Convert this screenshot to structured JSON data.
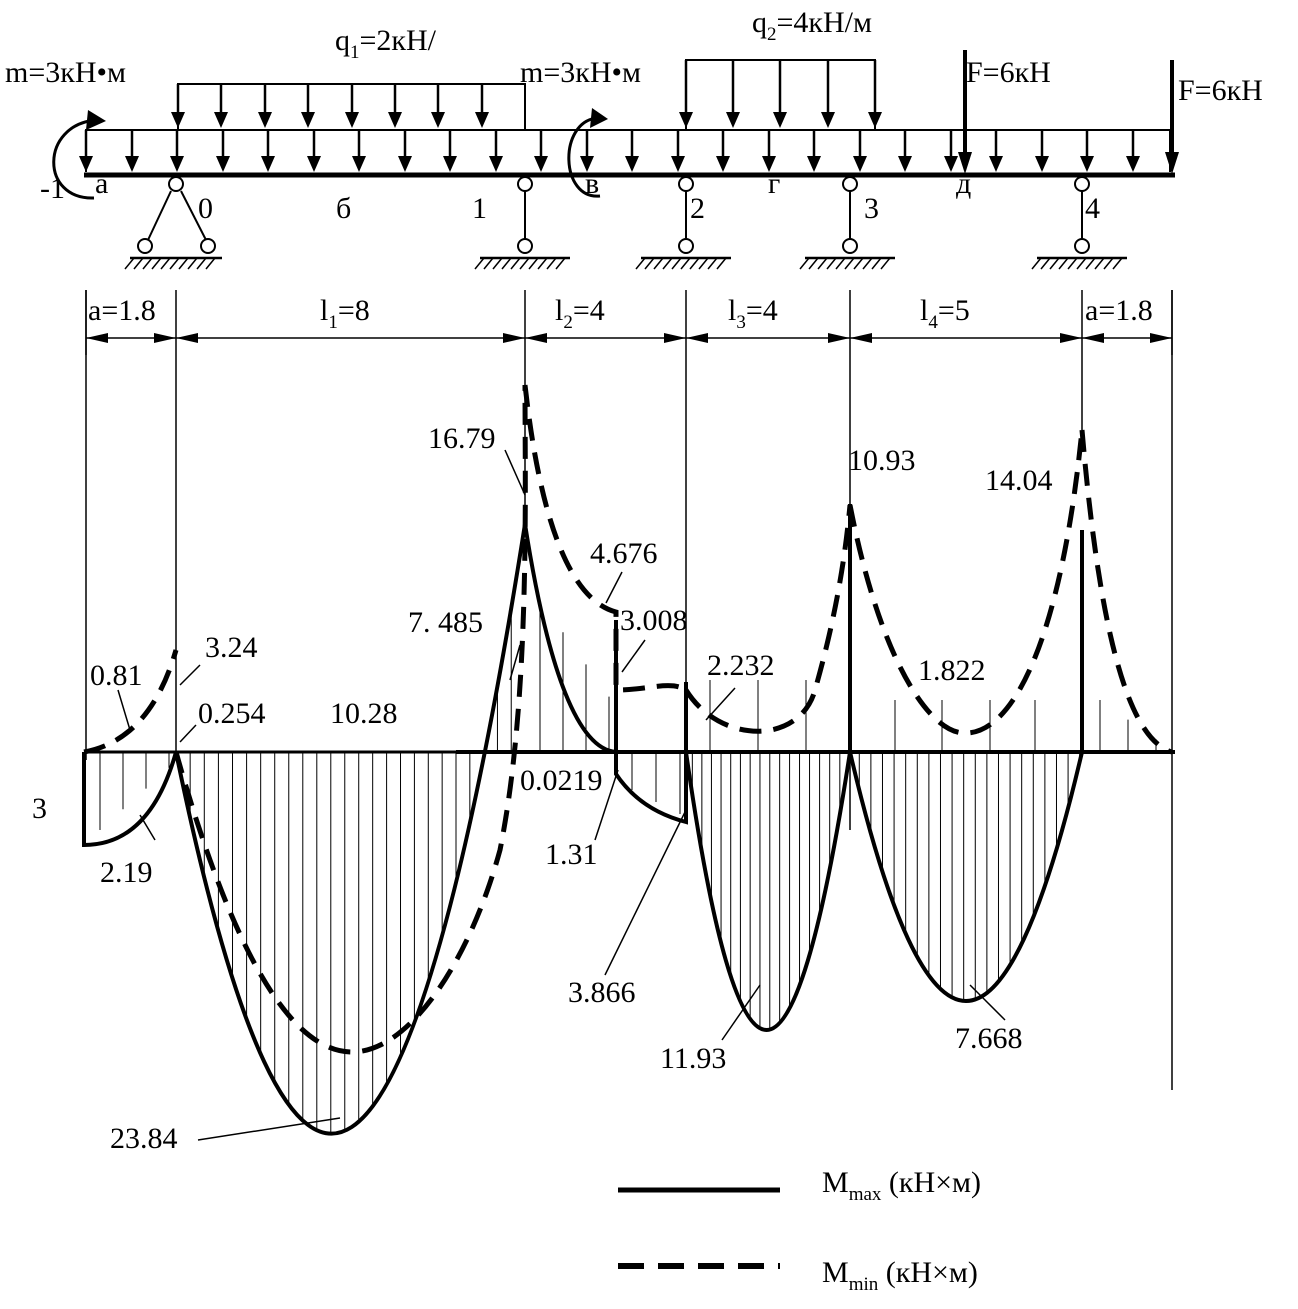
{
  "loads": {
    "q1_main": "q",
    "q1_sub": "1",
    "q1_val": "=2кН/",
    "q2_main": "q",
    "q2_sub": "2",
    "q2_val": "=4кН/м",
    "m_left": "m=3кН•м",
    "m_mid": "m=3кН•м",
    "f_mid": "F=6кН",
    "f_right": "F=6кН"
  },
  "points": {
    "minus1": "-1",
    "a": "а",
    "s0": "0",
    "b": "б",
    "s1": "1",
    "v": "в",
    "s2": "2",
    "g": "г",
    "s3": "3",
    "d": "д",
    "s4": "4"
  },
  "dims": {
    "a_left": "a=1.8",
    "l1_main": "l",
    "l1_sub": "1",
    "l1_val": "=8",
    "l2_main": "l",
    "l2_sub": "2",
    "l2_val": "=4",
    "l3_main": "l",
    "l3_sub": "3",
    "l3_val": "=4",
    "l4_main": "l",
    "l4_sub": "4",
    "l4_val": "=5",
    "a_right": "a=1.8"
  },
  "values": {
    "v1679": "16.79",
    "v1093": "10.93",
    "v1404": "14.04",
    "v4676": "4.676",
    "v7485": "7. 485",
    "v3008": "3.008",
    "v324": "3.24",
    "v081": "0.81",
    "v2232": "2.232",
    "v1822": "1.822",
    "v0254": "0.254",
    "v1028": "10.28",
    "v00219": "0.0219",
    "v3": "3",
    "v219": "2.19",
    "v131": "1.31",
    "v3866": "3.866",
    "v1193": "11.93",
    "v7668": "7.668",
    "v2384": "23.84"
  },
  "legend": {
    "max_main": "M",
    "max_sub": "max",
    "max_unit": " (кН×м)",
    "min_main": "M",
    "min_sub": "min",
    "min_unit": " (кН×м)"
  }
}
